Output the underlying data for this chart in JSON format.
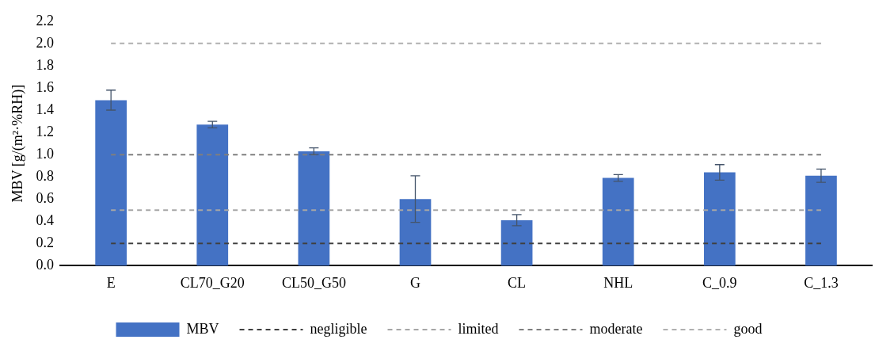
{
  "chart_data": {
    "type": "bar",
    "ylabel": "MBV [g/(m²·%RH)]",
    "categories": [
      "E",
      "CL70_G20",
      "CL50_G50",
      "G",
      "CL",
      "NHL",
      "C_0.9",
      "C_1.3"
    ],
    "series": [
      {
        "name": "MBV",
        "color": "#4472c4",
        "values": [
          1.49,
          1.27,
          1.03,
          0.6,
          0.41,
          0.79,
          0.84,
          0.81
        ],
        "errors": [
          0.09,
          0.03,
          0.03,
          0.21,
          0.05,
          0.03,
          0.07,
          0.06
        ]
      }
    ],
    "ylim": [
      0,
      2.2
    ],
    "yticks": [
      {
        "value": 0,
        "label": "0.0"
      },
      0.2,
      0.4,
      0.6,
      0.8,
      {
        "value": 1,
        "label": "1.0"
      },
      1.2,
      1.4,
      1.6,
      1.8,
      {
        "value": 2,
        "label": "2.0"
      },
      2.2
    ],
    "ref_lines": [
      {
        "axis": "y",
        "value": 0.2,
        "label": "negligible",
        "color": "#404040",
        "line_style": "dashed"
      },
      {
        "axis": "y",
        "value": 0.5,
        "label": "limited",
        "color": "#a6a6a6",
        "line_style": "dashed"
      },
      {
        "axis": "y",
        "value": 1.0,
        "label": "moderate",
        "color": "#7f7f7f",
        "line_style": "dashed"
      },
      {
        "axis": "y",
        "value": 2.0,
        "label": "good",
        "color": "#b0b0b0",
        "line_style": "dashed"
      }
    ],
    "grid": false,
    "legend": "bottom"
  }
}
